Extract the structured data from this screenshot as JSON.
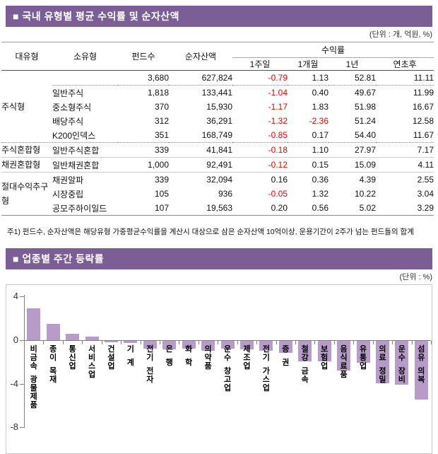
{
  "colors": {
    "accent_purple": "#7C5E97",
    "bar_purple": "#B79BC8",
    "negative_red": "#EE0000"
  },
  "section1": {
    "title": "■  국내 유형별 평균 수익률 및 순자산액",
    "unit_label": "(단위 : 개, 억원, %)",
    "footnote": "주1) 펀드수, 순자산액은 해당유형 가중평균수익률을 계산시 대상으로 삼은 순자산액 10억이상, 운용기간이 2주가 넘는 펀드들의 합계",
    "table": {
      "headers": {
        "big_type": "대유형",
        "sub_type": "소유형",
        "fund_count": "펀드수",
        "net_assets": "순자산액",
        "return_group": "수익률",
        "week1": "1주일",
        "month1": "1개월",
        "year1": "1년",
        "ytd": "연초후"
      },
      "rows": [
        {
          "group": "주식형",
          "span": 5,
          "sub": "",
          "funds": "3,680",
          "assets": "627,824",
          "w1": "-0.79",
          "m1": "1.13",
          "y1": "52.81",
          "ytd": "11.11"
        },
        {
          "sub": "일반주식",
          "funds": "1,818",
          "assets": "133,441",
          "w1": "-1.04",
          "m1": "0.40",
          "y1": "49.67",
          "ytd": "11.99"
        },
        {
          "sub": "중소형주식",
          "funds": "370",
          "assets": "15,930",
          "w1": "-1.17",
          "m1": "1.83",
          "y1": "51.98",
          "ytd": "16.67"
        },
        {
          "sub": "배당주식",
          "funds": "312",
          "assets": "36,291",
          "w1": "-1.32",
          "m1": "-2.36",
          "y1": "51.24",
          "ytd": "12.58"
        },
        {
          "sub": "K200인덱스",
          "funds": "351",
          "assets": "168,749",
          "w1": "-0.85",
          "m1": "0.17",
          "y1": "54.40",
          "ytd": "11.67"
        },
        {
          "group": "주식혼합형",
          "span": 1,
          "sub": "일반주식혼합",
          "funds": "339",
          "assets": "41,841",
          "w1": "-0.18",
          "m1": "1.10",
          "y1": "27.97",
          "ytd": "7.17"
        },
        {
          "group": "채권혼합형",
          "span": 1,
          "sub": "일반채권혼합",
          "funds": "1,000",
          "assets": "92,491",
          "w1": "-0.12",
          "m1": "0.15",
          "y1": "15.09",
          "ytd": "4.11"
        },
        {
          "group": "절대수익추구형",
          "span": 3,
          "sub": "채권알파",
          "funds": "339",
          "assets": "32,094",
          "w1": "0.16",
          "m1": "0.36",
          "y1": "4.39",
          "ytd": "2.55"
        },
        {
          "sub": "시장중립",
          "funds": "105",
          "assets": "936",
          "w1": "-0.05",
          "m1": "1.32",
          "y1": "10.22",
          "ytd": "3.04"
        },
        {
          "sub": "공모주하이일드",
          "funds": "107",
          "assets": "19,563",
          "w1": "0.20",
          "m1": "0.56",
          "y1": "5.02",
          "ytd": "3.29"
        }
      ]
    }
  },
  "section2": {
    "title": "■  업종별 주간 등락률",
    "unit_label": "(단위 : %)"
  },
  "chart_data": {
    "type": "bar",
    "title": "업종별 주간 등락률",
    "unit": "%",
    "categories": [
      "비금속 광물제품",
      "종이 목재",
      "통신업",
      "서비스업",
      "건설업",
      "기 계",
      "전기 전자",
      "은 행",
      "화 학",
      "의약품",
      "운수 창고업",
      "제조업",
      "전기 가스업",
      "증 권",
      "철강 금속",
      "보험업",
      "음식료품",
      "유통업",
      "의료 정밀",
      "운수 장비",
      "섬유 의복"
    ],
    "values": [
      2.9,
      1.5,
      0.6,
      0.3,
      -0.1,
      -0.2,
      -0.7,
      -0.8,
      -0.7,
      -0.9,
      -0.7,
      -0.8,
      -0.9,
      -1.1,
      -1.9,
      -1.9,
      -2.7,
      -2.0,
      -3.9,
      -4.0,
      -5.4
    ],
    "y_ticks": [
      4,
      0,
      -4,
      -8
    ],
    "ylim": [
      -8.5,
      4.5
    ],
    "xlabel": "",
    "ylabel": "",
    "grid": false,
    "legend": "none",
    "bar_color": "#B79BC8"
  }
}
